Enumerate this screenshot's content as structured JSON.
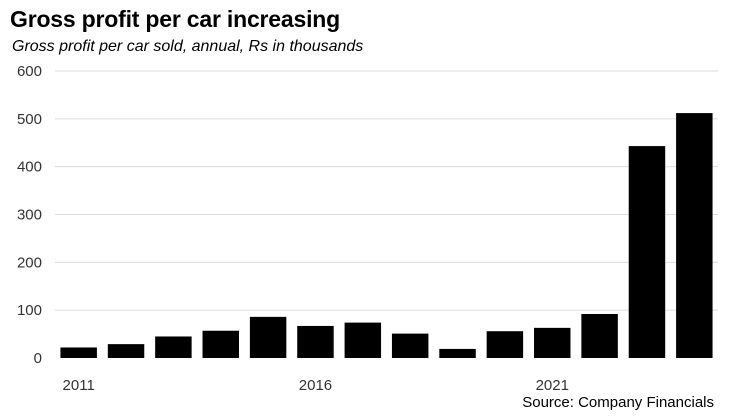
{
  "chart_data": {
    "type": "bar",
    "title": "Gross profit per car increasing",
    "subtitle": "Gross profit per car sold, annual, Rs in thousands",
    "source": "Source: Company Financials",
    "categories": [
      "2011",
      "2012",
      "2013",
      "2014",
      "2015",
      "2016",
      "2017",
      "2018",
      "2019",
      "2020",
      "2021",
      "2022",
      "2023",
      "2024"
    ],
    "values": [
      22,
      29,
      45,
      57,
      86,
      67,
      74,
      51,
      19,
      56,
      63,
      92,
      443,
      512
    ],
    "ylim": [
      0,
      600
    ],
    "yticks": [
      0,
      100,
      200,
      300,
      400,
      500,
      600
    ],
    "xtick_labels": [
      {
        "category": "2011",
        "label": "2011"
      },
      {
        "category": "2016",
        "label": "2016"
      },
      {
        "category": "2021",
        "label": "2021"
      }
    ],
    "grid": true,
    "bar_color": "#000000",
    "grid_color": "#dcdcdc"
  }
}
